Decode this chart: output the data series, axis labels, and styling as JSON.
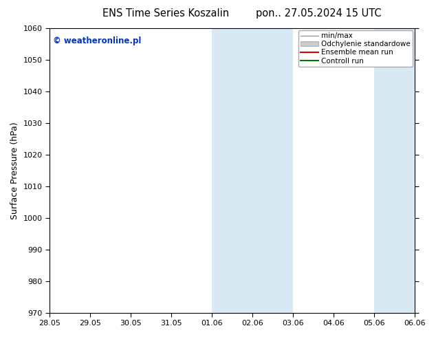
{
  "title_left": "ENS Time Series Koszalin",
  "title_right": "pon.. 27.05.2024 15 UTC",
  "ylabel": "Surface Pressure (hPa)",
  "ylim": [
    970,
    1060
  ],
  "yticks": [
    970,
    980,
    990,
    1000,
    1010,
    1020,
    1030,
    1040,
    1050,
    1060
  ],
  "xlabel_dates": [
    "28.05",
    "29.05",
    "30.05",
    "31.05",
    "01.06",
    "02.06",
    "03.06",
    "04.06",
    "05.06",
    "06.06"
  ],
  "watermark": "© weatheronline.pl",
  "watermark_color": "#0033cc",
  "shaded_regions": [
    {
      "xstart": 4,
      "xend": 6
    },
    {
      "xstart": 8,
      "xend": 9
    }
  ],
  "shade_color": "#daeaf5",
  "background_color": "#ffffff",
  "legend_entries": [
    {
      "label": "min/max",
      "color": "#999999",
      "lw": 1.0
    },
    {
      "label": "Odchylenie standardowe",
      "color": "#cccccc",
      "lw": 6.0
    },
    {
      "label": "Ensemble mean run",
      "color": "#dd0000",
      "lw": 1.5
    },
    {
      "label": "Controll run",
      "color": "#007700",
      "lw": 1.5
    }
  ],
  "fig_width": 6.34,
  "fig_height": 4.9,
  "dpi": 100
}
